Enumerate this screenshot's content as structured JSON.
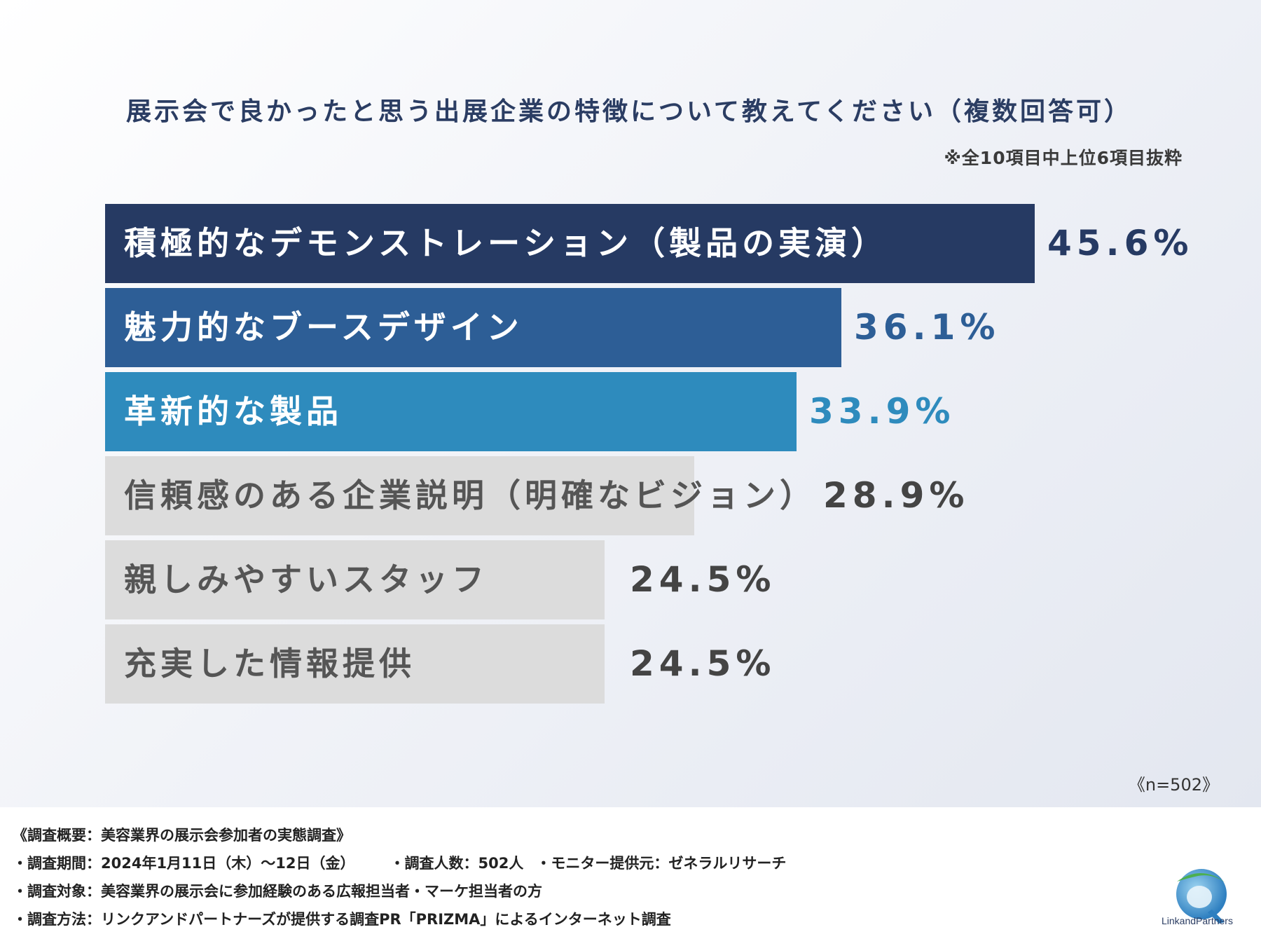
{
  "title": "展示会で良かったと思う出展企業の特徴について教えてください（複数回答可）",
  "note": "※全10項目中上位6項目抜粋",
  "chart_data": {
    "type": "bar",
    "orientation": "horizontal",
    "categories": [
      "積極的なデモンストレーション（製品の実演）",
      "魅力的なブースデザイン",
      "革新的な製品",
      "信頼感のある企業説明（明確なビジョン）",
      "親しみやすいスタッフ",
      "充実した情報提供"
    ],
    "values": [
      45.6,
      36.1,
      33.9,
      28.9,
      24.5,
      24.5
    ],
    "value_labels": [
      "45.6%",
      "36.1%",
      "33.9%",
      "28.9%",
      "24.5%",
      "24.5%"
    ],
    "bar_colors": [
      "#263a63",
      "#2d5e96",
      "#2e8bbd",
      "#dcdcdc",
      "#dcdcdc",
      "#dcdcdc"
    ],
    "label_colors": [
      "#ffffff",
      "#ffffff",
      "#ffffff",
      "#555555",
      "#555555",
      "#555555"
    ],
    "value_colors": [
      "#263a63",
      "#2d5e96",
      "#2e8bbd",
      "#444444",
      "#444444",
      "#444444"
    ],
    "xlim": [
      0,
      45.6
    ],
    "grid": false,
    "title": "展示会で良かったと思う出展企業の特徴について教えてください（複数回答可）"
  },
  "sample_size": "《n=502》",
  "footer": {
    "line1": "《調査概要：美容業界の展示会参加者の実態調査》",
    "period": "・調査期間：2024年1月11日（木）～12日（金）",
    "respondents": "・調査人数：502人",
    "monitor": "・モニター提供元：ゼネラルリサーチ",
    "target": "・調査対象：美容業界の展示会に参加経験のある広報担当者・マーケ担当者の方",
    "method": "・調査方法：リンクアンドパートナーズが提供する調査PR「PRIZMA」によるインターネット調査"
  },
  "logo": {
    "icon": "link-and-partners-logo-icon",
    "text": "LinkandPartners",
    "colors": [
      "#2e8bbd",
      "#4caf50"
    ]
  }
}
